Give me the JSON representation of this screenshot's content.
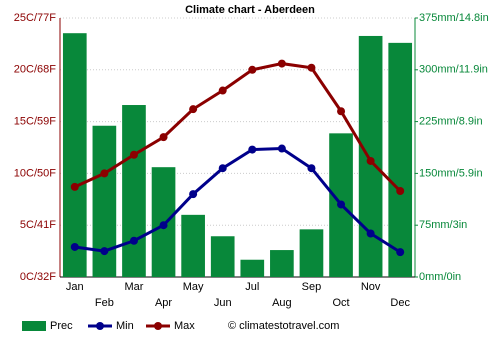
{
  "chart_data": {
    "type": "bar",
    "title": "Climate chart - Aberdeen",
    "categories": [
      "Jan",
      "Feb",
      "Mar",
      "Apr",
      "May",
      "Jun",
      "Jul",
      "Aug",
      "Sep",
      "Oct",
      "Nov",
      "Dec"
    ],
    "series": [
      {
        "name": "Prec",
        "type": "bar",
        "axis": "y2",
        "color": "#08883a",
        "values": [
          353,
          219,
          249,
          159,
          90,
          59,
          25,
          39,
          69,
          208,
          349,
          339
        ]
      },
      {
        "name": "Min",
        "type": "line",
        "color": "#00008b",
        "values": [
          2.9,
          2.5,
          3.5,
          5.0,
          8.0,
          10.5,
          12.3,
          12.4,
          10.5,
          7.0,
          4.2,
          2.4
        ]
      },
      {
        "name": "Max",
        "type": "line",
        "color": "#8b0000",
        "values": [
          8.7,
          10.0,
          11.8,
          13.5,
          16.2,
          18.0,
          20.0,
          20.6,
          20.2,
          16.0,
          11.2,
          8.3
        ]
      }
    ],
    "ylim": [
      0,
      25
    ],
    "yticks": [
      {
        "value": 0,
        "label": "0C/32F"
      },
      {
        "value": 5,
        "label": "5C/41F"
      },
      {
        "value": 10,
        "label": "10C/50F"
      },
      {
        "value": 15,
        "label": "15C/59F"
      },
      {
        "value": 20,
        "label": "20C/68F"
      },
      {
        "value": 25,
        "label": "25C/77F"
      }
    ],
    "y2lim": [
      0,
      375
    ],
    "y2ticks": [
      {
        "value": 0,
        "label": "0mm/0in"
      },
      {
        "value": 75,
        "label": "75mm/3in"
      },
      {
        "value": 150,
        "label": "150mm/5.9in"
      },
      {
        "value": 225,
        "label": "225mm/8.9in"
      },
      {
        "value": 300,
        "label": "300mm/11.9in"
      },
      {
        "value": 375,
        "label": "375mm/14.8in"
      }
    ],
    "grid": true,
    "credit": "© climatestotravel.com"
  }
}
